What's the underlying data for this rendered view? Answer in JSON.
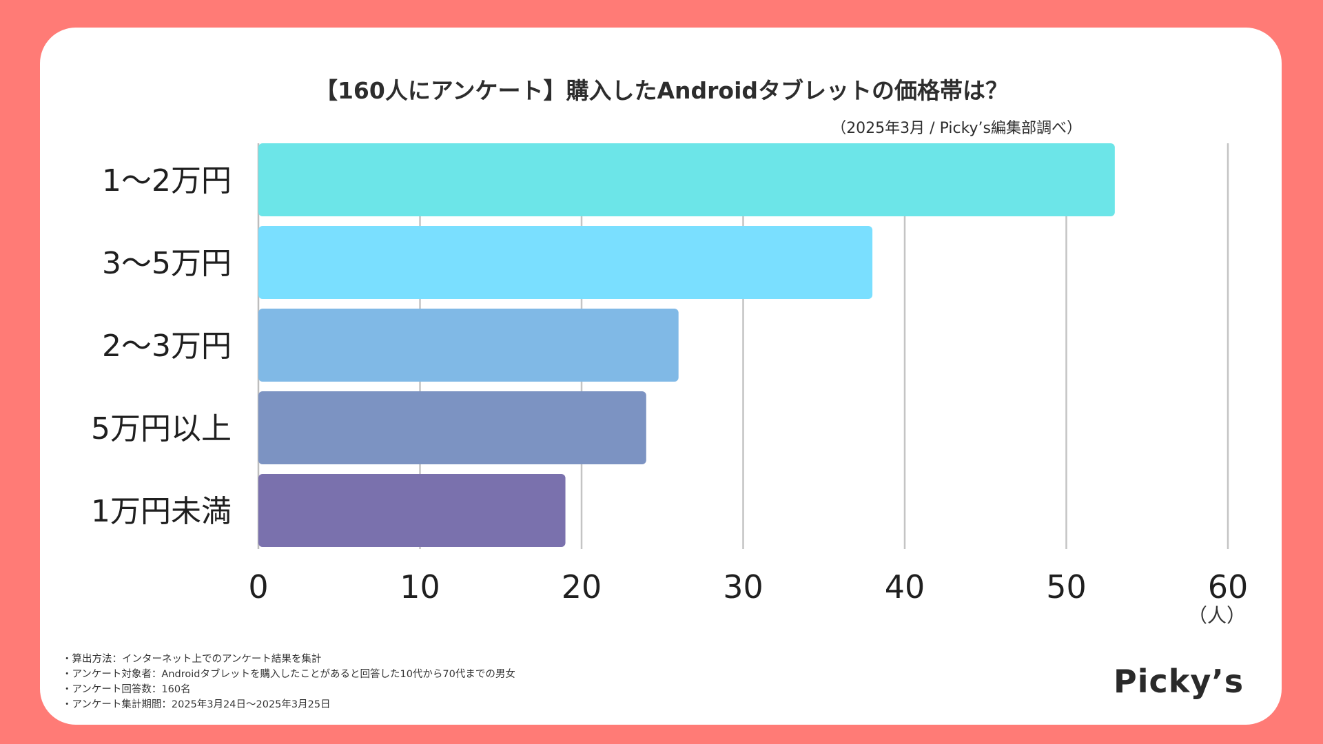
{
  "brand": {
    "logo_text": "Picky’s",
    "background": "#FF7B76"
  },
  "source_note": "（2025年3月 / Picky’s編集部調べ）",
  "unit_label": "（人）",
  "notes": [
    "・算出方法：インターネット上でのアンケート結果を集計",
    "・アンケート対象者：Androidタブレットを購入したことがあると回答した10代から70代までの男女",
    "・アンケート回答数：160名",
    "・アンケート集計期間：2025年3月24日〜2025年3月25日"
  ],
  "chart_data": {
    "type": "bar",
    "orientation": "horizontal",
    "title": "【160人にアンケート】購入したAndroidタブレットの価格帯は？",
    "categories": [
      "1〜2万円",
      "3〜5万円",
      "2〜3万円",
      "5万円以上",
      "1万円未満"
    ],
    "values": [
      53,
      38,
      26,
      24,
      19
    ],
    "colors": [
      "#6CE5E8",
      "#7ADFFF",
      "#80B9E6",
      "#7C93C2",
      "#7A71AD"
    ],
    "xlim": [
      0,
      60
    ],
    "xticks": [
      0,
      10,
      20,
      30,
      40,
      50,
      60
    ],
    "xlabel": "（人）",
    "ylabel": "",
    "grid": true
  }
}
